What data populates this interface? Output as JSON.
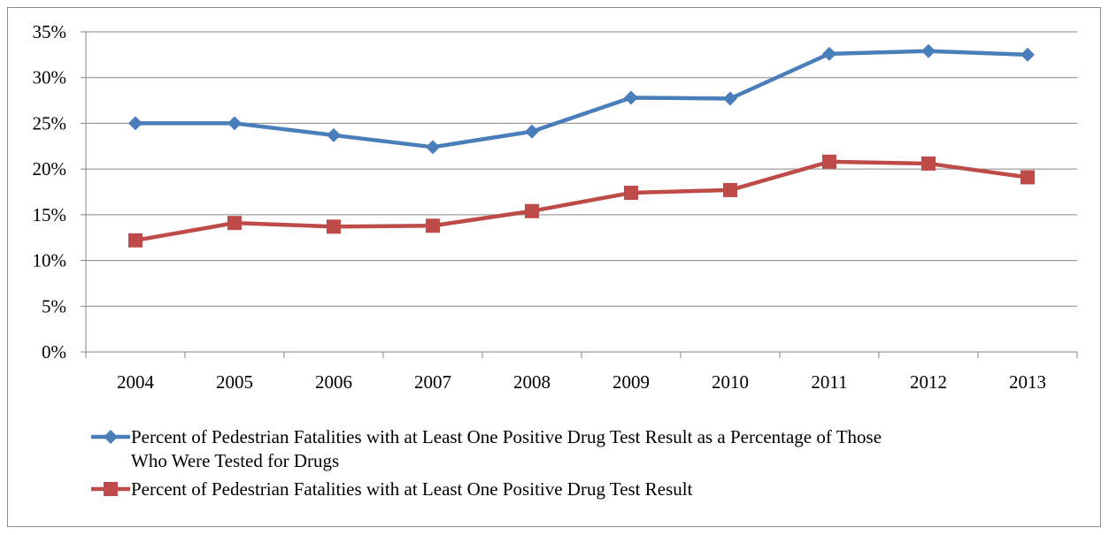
{
  "chart_data": {
    "type": "line",
    "categories": [
      "2004",
      "2005",
      "2006",
      "2007",
      "2008",
      "2009",
      "2010",
      "2011",
      "2012",
      "2013"
    ],
    "y_ticks": [
      "0%",
      "5%",
      "10%",
      "15%",
      "20%",
      "25%",
      "30%",
      "35%"
    ],
    "ylim": [
      0,
      35
    ],
    "grid": true,
    "legend_position": "bottom",
    "series": [
      {
        "name": "Percent of Pedestrian Fatalities with at Least One Positive Drug Test Result as a Percentage of Those Who Were Tested for Drugs",
        "name_line1": "Percent of Pedestrian Fatalities with at Least One Positive Drug Test Result as a Percentage of Those",
        "name_line2": "Who Were Tested for Drugs",
        "marker": "diamond",
        "color": "#4a7ebb",
        "values": [
          25.0,
          25.0,
          23.7,
          22.4,
          24.1,
          27.8,
          27.7,
          32.6,
          32.9,
          32.5
        ]
      },
      {
        "name": "Percent of Pedestrian Fatalities with at Least One Positive Drug Test Result",
        "marker": "square",
        "color": "#be4b48",
        "values": [
          12.2,
          14.1,
          13.7,
          13.8,
          15.4,
          17.4,
          17.7,
          20.8,
          20.6,
          19.1
        ]
      }
    ]
  }
}
